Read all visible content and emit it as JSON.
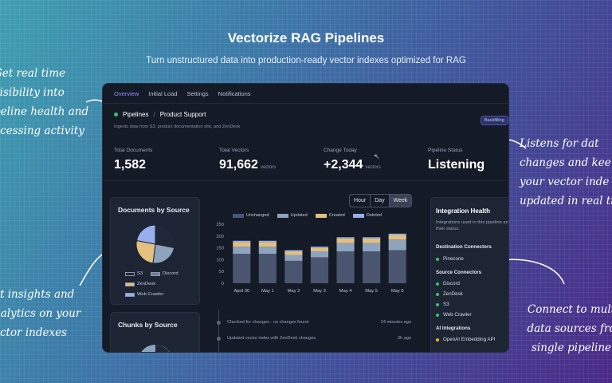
{
  "hero": {
    "title": "Vectorize RAG Pipelines",
    "subtitle": "Turn unstructured data into production-ready vector indexes optimized for RAG"
  },
  "callouts": {
    "left_top": [
      "Get real time",
      "visibility into",
      "peline health and",
      "ocessing activity"
    ],
    "left_bottom": [
      "et insights and",
      "nalytics on your",
      "ector indexes"
    ],
    "right_top": [
      "Listens for dat",
      "changes and kee",
      "your vector inde",
      "updated in real ti"
    ],
    "right_bottom": [
      "Connect to mult",
      "data sources fro",
      "single pipeline"
    ]
  },
  "tabs": [
    {
      "label": "Overview",
      "active": true
    },
    {
      "label": "Initial Load",
      "active": false
    },
    {
      "label": "Settings",
      "active": false
    },
    {
      "label": "Notifications",
      "active": false
    }
  ],
  "breadcrumb": {
    "root": "Pipelines",
    "separator": "/",
    "current": "Product Support"
  },
  "description": "Ingests data from S3, product documentation site, and ZenDesk",
  "status_badge": "Backfilling",
  "stats": [
    {
      "label": "Total Documents",
      "value": "1,582",
      "unit": ""
    },
    {
      "label": "Total Vectors",
      "value": "91,662",
      "unit": "vectors"
    },
    {
      "label": "Change Today",
      "value": "+2,344",
      "unit": "vectors"
    },
    {
      "label": "Pipeline Status",
      "value": "Listening",
      "unit": ""
    }
  ],
  "documents_by_source": {
    "title": "Documents by Source",
    "legend": [
      {
        "name": "S3",
        "color": "#1f2738"
      },
      {
        "name": "Discord",
        "color": "#6d7f98"
      },
      {
        "name": "ZenDesk",
        "color": "#e3c07d"
      },
      {
        "name": "Web Crawler",
        "color": "#98aef0"
      }
    ],
    "slices": [
      {
        "name": "S3",
        "value": 28,
        "color": "#1f2738"
      },
      {
        "name": "Discord",
        "value": 24,
        "color": "#8ea3bd"
      },
      {
        "name": "ZenDesk",
        "value": 26,
        "color": "#e3c07d"
      },
      {
        "name": "Web Crawler",
        "value": 22,
        "color": "#98aef0"
      }
    ]
  },
  "chunks_by_source": {
    "title": "Chunks by Source"
  },
  "time_range": {
    "options": [
      "Hour",
      "Day",
      "Week"
    ],
    "selected": "Week"
  },
  "chart_data": {
    "type": "bar",
    "stacked": true,
    "categories": [
      "April 30",
      "May 1",
      "May 2",
      "May 3",
      "May 4",
      "May 5",
      "May 6"
    ],
    "series": [
      {
        "name": "Unchanged",
        "color": "#4a5670",
        "values": [
          125,
          125,
          95,
          110,
          135,
          135,
          140
        ]
      },
      {
        "name": "Updated",
        "color": "#8ea3bd",
        "values": [
          30,
          30,
          25,
          25,
          35,
          35,
          45
        ]
      },
      {
        "name": "Created",
        "color": "#e3c07d",
        "values": [
          20,
          20,
          15,
          15,
          20,
          20,
          20
        ]
      },
      {
        "name": "Deleted",
        "color": "#98aef0",
        "values": [
          5,
          5,
          5,
          5,
          5,
          5,
          5
        ]
      }
    ],
    "y_ticks": [
      0,
      50,
      100,
      150,
      200,
      250
    ],
    "ylim": [
      0,
      250
    ]
  },
  "activity": [
    {
      "text": "Checked for changes - no changes found",
      "time": "24 minutes ago"
    },
    {
      "text": "Updated vector index with ZenDesk changes",
      "time": "3h ago"
    }
  ],
  "integration_health": {
    "title": "Integration Health",
    "description": "Integrations used in this pipeline and their status.",
    "destination_heading": "Destination Connectors",
    "destinations": [
      "Pinecone"
    ],
    "source_heading": "Source Connectors",
    "sources": [
      "Discord",
      "ZenDesk",
      "S3",
      "Web Crawler"
    ],
    "ai_heading": "AI Integrations",
    "ai": [
      "OpenAI Embedding API"
    ]
  }
}
